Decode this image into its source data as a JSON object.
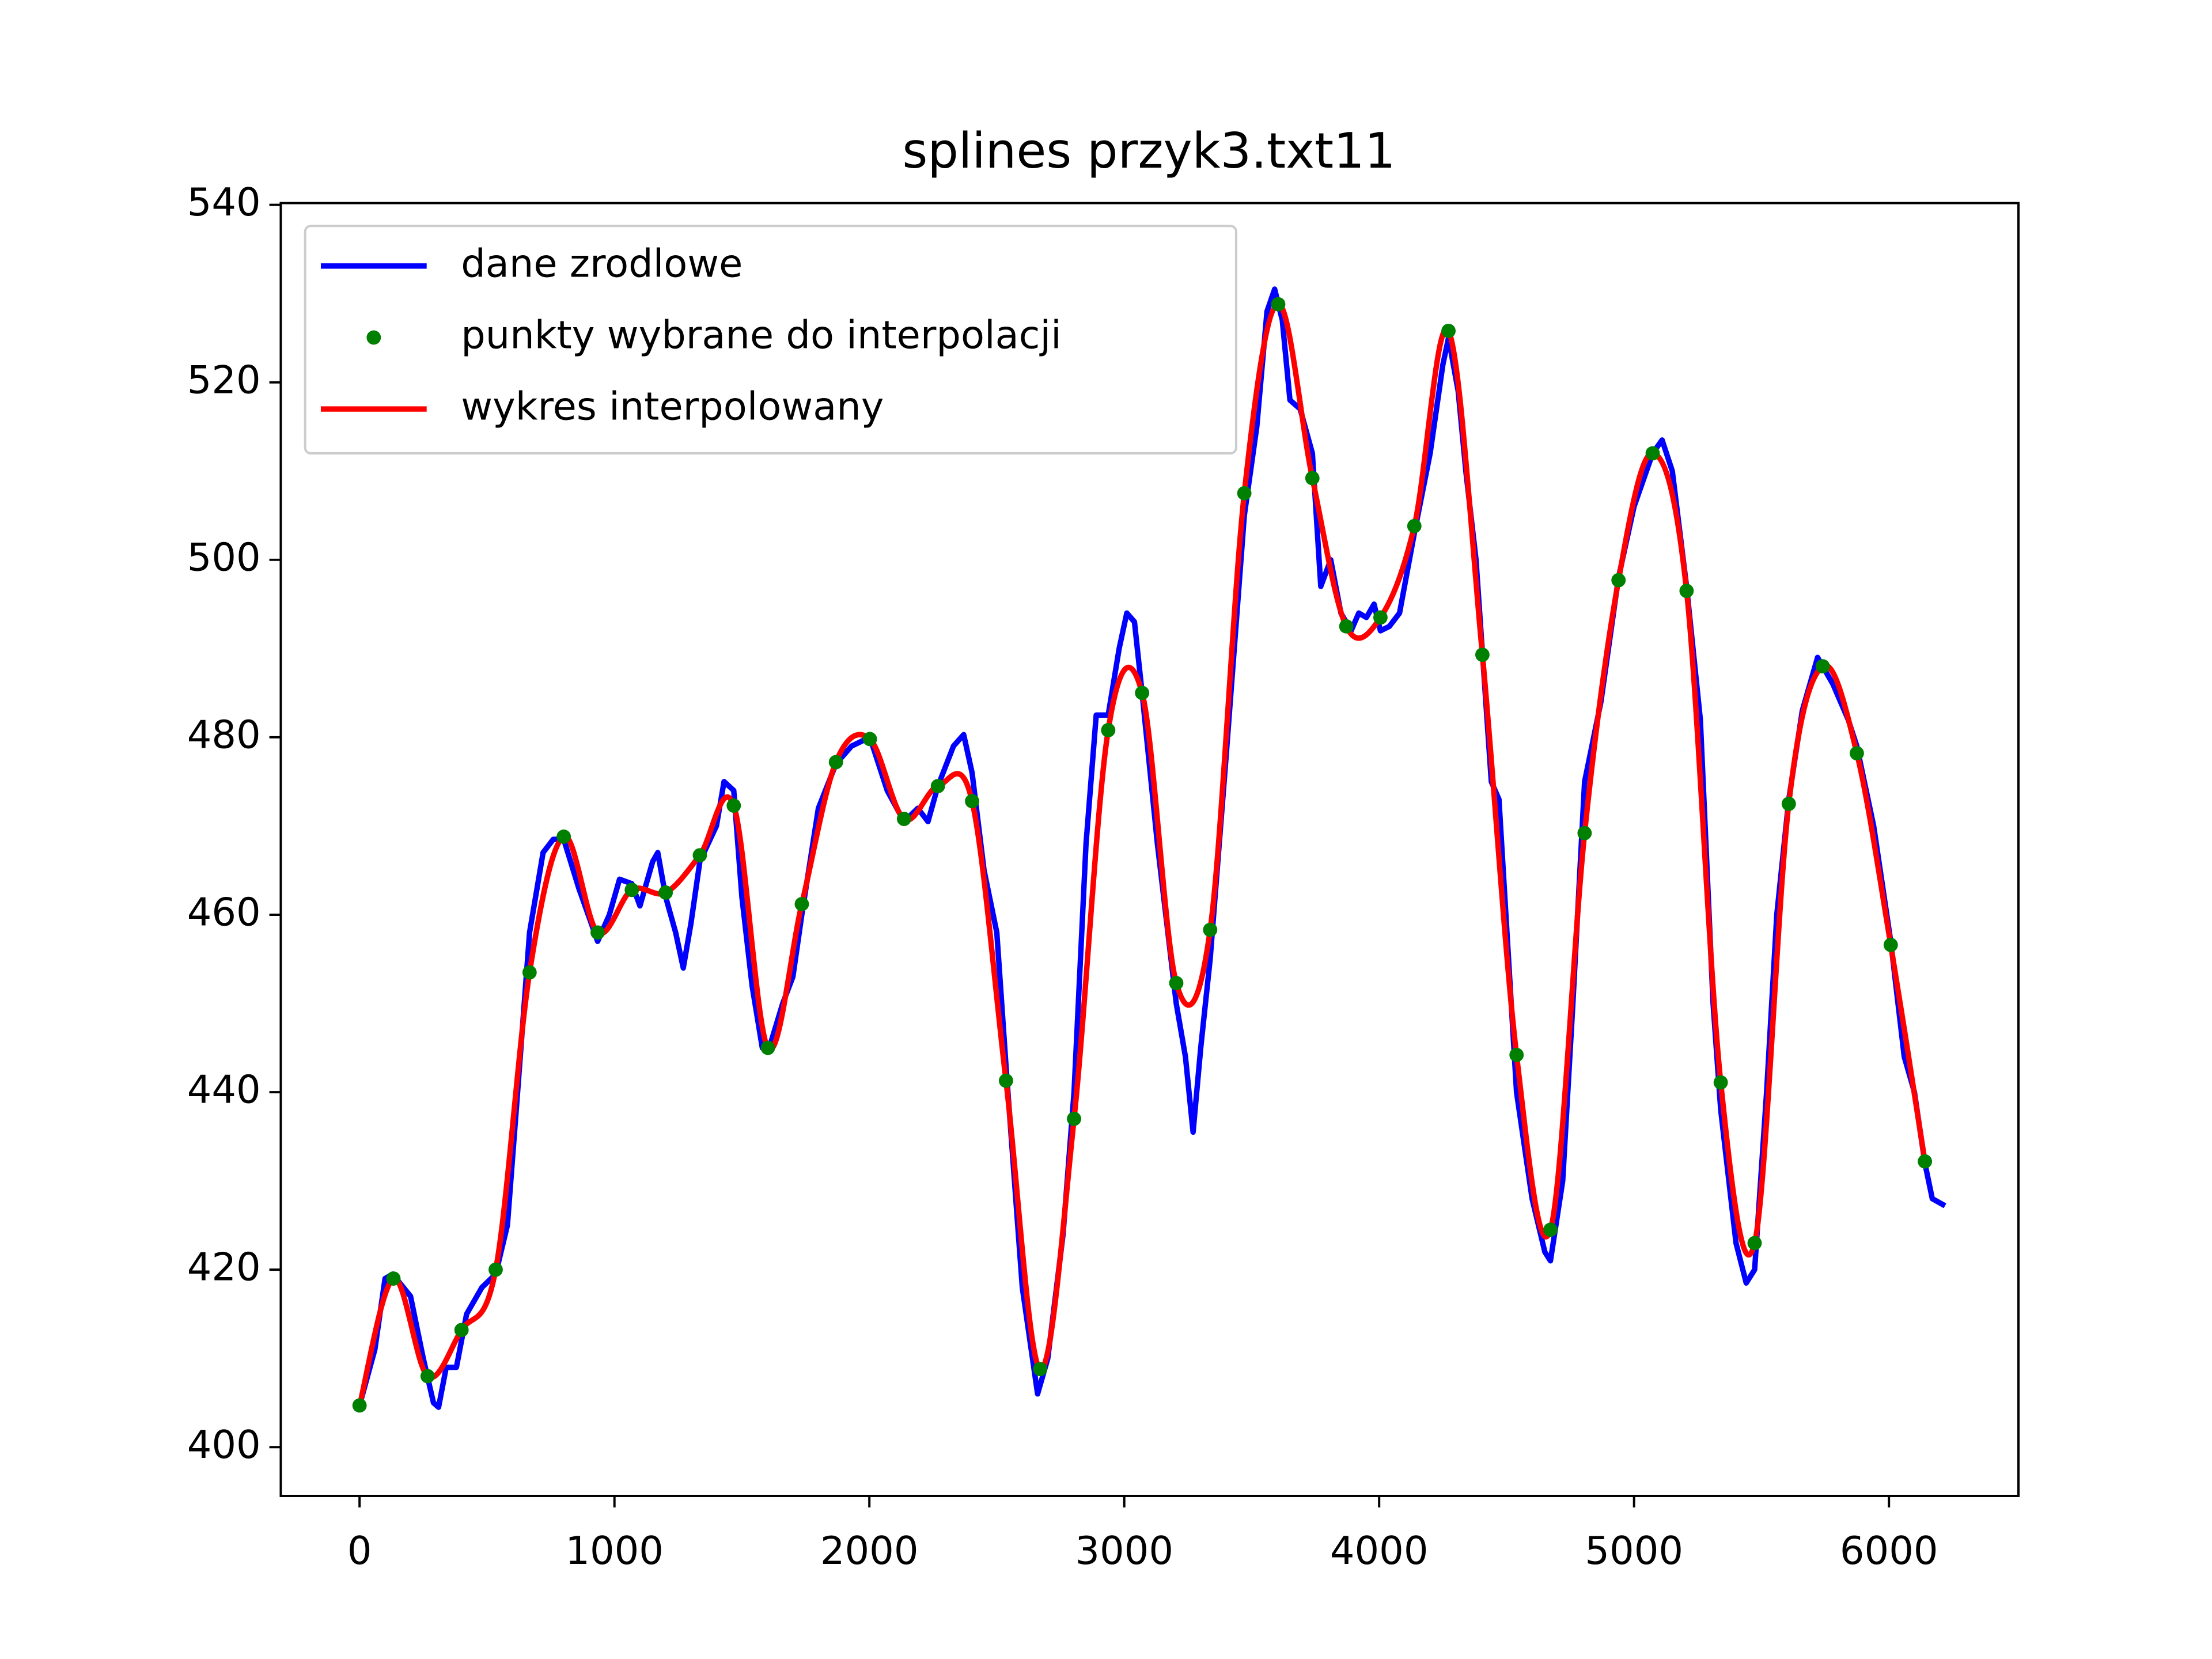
{
  "chart_data": {
    "type": "line",
    "title": "splines przyk3.txt11",
    "xlim": [
      -309,
      6508
    ],
    "ylim": [
      394.5,
      540.2
    ],
    "xticks": [
      0,
      1000,
      2000,
      3000,
      4000,
      5000,
      6000
    ],
    "yticks": [
      400,
      420,
      440,
      460,
      480,
      500,
      520,
      540
    ],
    "legend": "upper left",
    "series": [
      {
        "name": "dane zrodlowe",
        "color": "#0000ff",
        "style": "line",
        "x": [
          0,
          60,
          100,
          130,
          200,
          250,
          290,
          310,
          340,
          380,
          420,
          480,
          534,
          580,
          620,
          667,
          720,
          760,
          801,
          860,
          934,
          980,
          1020,
          1068,
          1100,
          1150,
          1170,
          1201,
          1240,
          1270,
          1300,
          1335,
          1400,
          1430,
          1468,
          1500,
          1540,
          1580,
          1602,
          1660,
          1700,
          1735,
          1800,
          1869,
          1930,
          2002,
          2070,
          2136,
          2190,
          2230,
          2269,
          2330,
          2370,
          2403,
          2450,
          2500,
          2536,
          2600,
          2660,
          2700,
          2760,
          2803,
          2850,
          2890,
          2937,
          2980,
          3010,
          3040,
          3070,
          3130,
          3204,
          3240,
          3270,
          3300,
          3337,
          3400,
          3471,
          3520,
          3560,
          3590,
          3620,
          3650,
          3690,
          3738,
          3771,
          3810,
          3850,
          3890,
          3920,
          3950,
          3980,
          4005,
          4040,
          4080,
          4138,
          4200,
          4250,
          4272,
          4310,
          4340,
          4380,
          4440,
          4470,
          4539,
          4600,
          4650,
          4672,
          4720,
          4760,
          4806,
          4870,
          4939,
          5000,
          5073,
          5110,
          5150,
          5206,
          5260,
          5310,
          5340,
          5400,
          5440,
          5473,
          5520,
          5560,
          5607,
          5660,
          5720,
          5780,
          5840,
          5874,
          5940,
          6007,
          6060,
          6100,
          6141,
          6170,
          6220
        ],
        "values": [
          404.7,
          411,
          419,
          419.5,
          417,
          410,
          405,
          404.5,
          409,
          409,
          415,
          418,
          419.5,
          425,
          440,
          458,
          467,
          468.5,
          468.5,
          463,
          457,
          460,
          464,
          463.5,
          461,
          466,
          467,
          462,
          458,
          454,
          459,
          466,
          470,
          475,
          474,
          462,
          452,
          445,
          444.5,
          450,
          453,
          460,
          472,
          477,
          479,
          480,
          474,
          470.5,
          472,
          470.5,
          474.5,
          479,
          480.3,
          476,
          465,
          458,
          443,
          418,
          406,
          410,
          424,
          440,
          468,
          482.5,
          482.5,
          490,
          494,
          493,
          485,
          468,
          450,
          444,
          435.5,
          445,
          455,
          478,
          505,
          515,
          528,
          530.5,
          527,
          518,
          517,
          512,
          497,
          500,
          494,
          492,
          494,
          493.5,
          495,
          492,
          492.5,
          494,
          503,
          512,
          522,
          525,
          519,
          510,
          500,
          475,
          473,
          440,
          428,
          422,
          421,
          430,
          450,
          475,
          484,
          498,
          506,
          512,
          513.5,
          510,
          497,
          482,
          450,
          438,
          423,
          418.5,
          420,
          440,
          460,
          473,
          483,
          489,
          486,
          482,
          479,
          470,
          457,
          444,
          440,
          432,
          428,
          427.2
        ]
      },
      {
        "name": "punkty wybrane do interpolacji",
        "color": "#008000",
        "style": "points",
        "x": [
          0,
          133,
          267,
          400,
          534,
          667,
          801,
          934,
          1068,
          1201,
          1335,
          1468,
          1602,
          1735,
          1869,
          2002,
          2136,
          2269,
          2403,
          2536,
          2670,
          2803,
          2937,
          3070,
          3204,
          3337,
          3471,
          3604,
          3738,
          3871,
          4005,
          4138,
          4272,
          4405,
          4539,
          4672,
          4806,
          4939,
          5073,
          5206,
          5340,
          5473,
          5607,
          5740,
          5874,
          6007,
          6141
        ],
        "values": [
          404.7,
          419,
          408,
          413.2,
          420,
          453.5,
          468.8,
          458,
          462.8,
          462.5,
          466.7,
          472.3,
          445,
          461.2,
          477.2,
          479.8,
          470.8,
          474.5,
          472.8,
          441.3,
          408.8,
          437,
          480.8,
          485,
          452.3,
          458.3,
          507.5,
          528.8,
          509.2,
          492.5,
          493.5,
          503.8,
          525.8,
          489.3,
          444.2,
          424.5,
          469.2,
          497.7,
          512,
          496.5,
          441.1,
          423,
          472.5,
          488,
          478.2,
          456.6,
          432.2
        ]
      },
      {
        "name": "wykres interpolowany",
        "color": "#ff0000",
        "style": "spline",
        "x": [
          0,
          133,
          267,
          400,
          534,
          667,
          801,
          934,
          1068,
          1201,
          1335,
          1468,
          1602,
          1735,
          1869,
          2002,
          2136,
          2269,
          2403,
          2536,
          2670,
          2803,
          2937,
          3070,
          3204,
          3337,
          3471,
          3604,
          3738,
          3871,
          4005,
          4138,
          4272,
          4405,
          4539,
          4672,
          4806,
          4939,
          5073,
          5206,
          5340,
          5473,
          5607,
          5740,
          5874,
          6007,
          6141
        ],
        "values": [
          404.7,
          419,
          408,
          413.2,
          420,
          453.5,
          468.8,
          458,
          462.8,
          462.5,
          466.7,
          472.3,
          445,
          461.2,
          477.2,
          479.8,
          470.8,
          474.5,
          472.8,
          441.3,
          408.8,
          437,
          480.8,
          485,
          452.3,
          458.3,
          507.5,
          528.8,
          509.2,
          492.5,
          493.5,
          503.8,
          525.8,
          489.3,
          444.2,
          424.5,
          469.2,
          497.7,
          512,
          496.5,
          441.1,
          423,
          472.5,
          488,
          478.2,
          456.6,
          432.2
        ]
      }
    ]
  }
}
